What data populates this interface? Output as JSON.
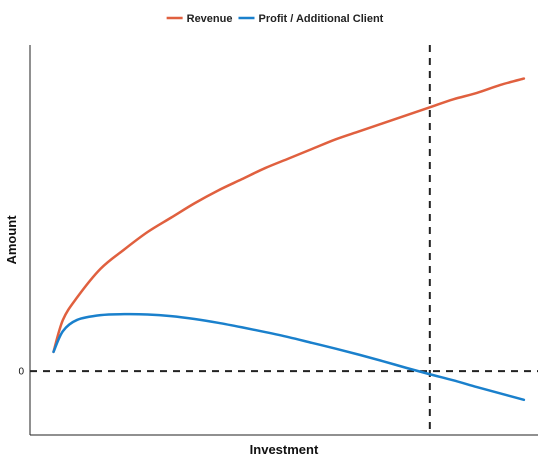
{
  "chart_data": {
    "type": "line",
    "title": "",
    "xlabel": "Investment",
    "ylabel": "Amount",
    "x": [
      0.0,
      0.02,
      0.05,
      0.1,
      0.15,
      0.2,
      0.25,
      0.3,
      0.35,
      0.4,
      0.45,
      0.5,
      0.55,
      0.6,
      0.65,
      0.7,
      0.75,
      0.8,
      0.85,
      0.9,
      0.95,
      1.0
    ],
    "series": [
      {
        "name": "Revenue",
        "color": "#e0603f",
        "values": [
          0.06,
          0.16,
          0.23,
          0.32,
          0.38,
          0.435,
          0.48,
          0.525,
          0.565,
          0.6,
          0.635,
          0.665,
          0.695,
          0.725,
          0.75,
          0.775,
          0.8,
          0.825,
          0.85,
          0.87,
          0.895,
          0.915
        ]
      },
      {
        "name": "Profit / Additional Client",
        "color": "#1a80cc",
        "values": [
          0.06,
          0.125,
          0.16,
          0.175,
          0.178,
          0.177,
          0.172,
          0.163,
          0.151,
          0.137,
          0.122,
          0.106,
          0.088,
          0.07,
          0.051,
          0.031,
          0.01,
          -0.01,
          -0.029,
          -0.05,
          -0.07,
          -0.09
        ]
      }
    ],
    "yticks": [
      {
        "value": 0,
        "label": "0"
      }
    ],
    "reference_lines": [
      {
        "axis": "y",
        "value": 0,
        "style": "dashed",
        "color": "#222222"
      },
      {
        "axis": "x",
        "value": 0.8,
        "style": "dashed",
        "color": "#222222"
      }
    ],
    "xlim": [
      -0.05,
      1.03
    ],
    "ylim": [
      -0.2,
      1.02
    ],
    "legend_position": "top-center",
    "grid": false
  }
}
